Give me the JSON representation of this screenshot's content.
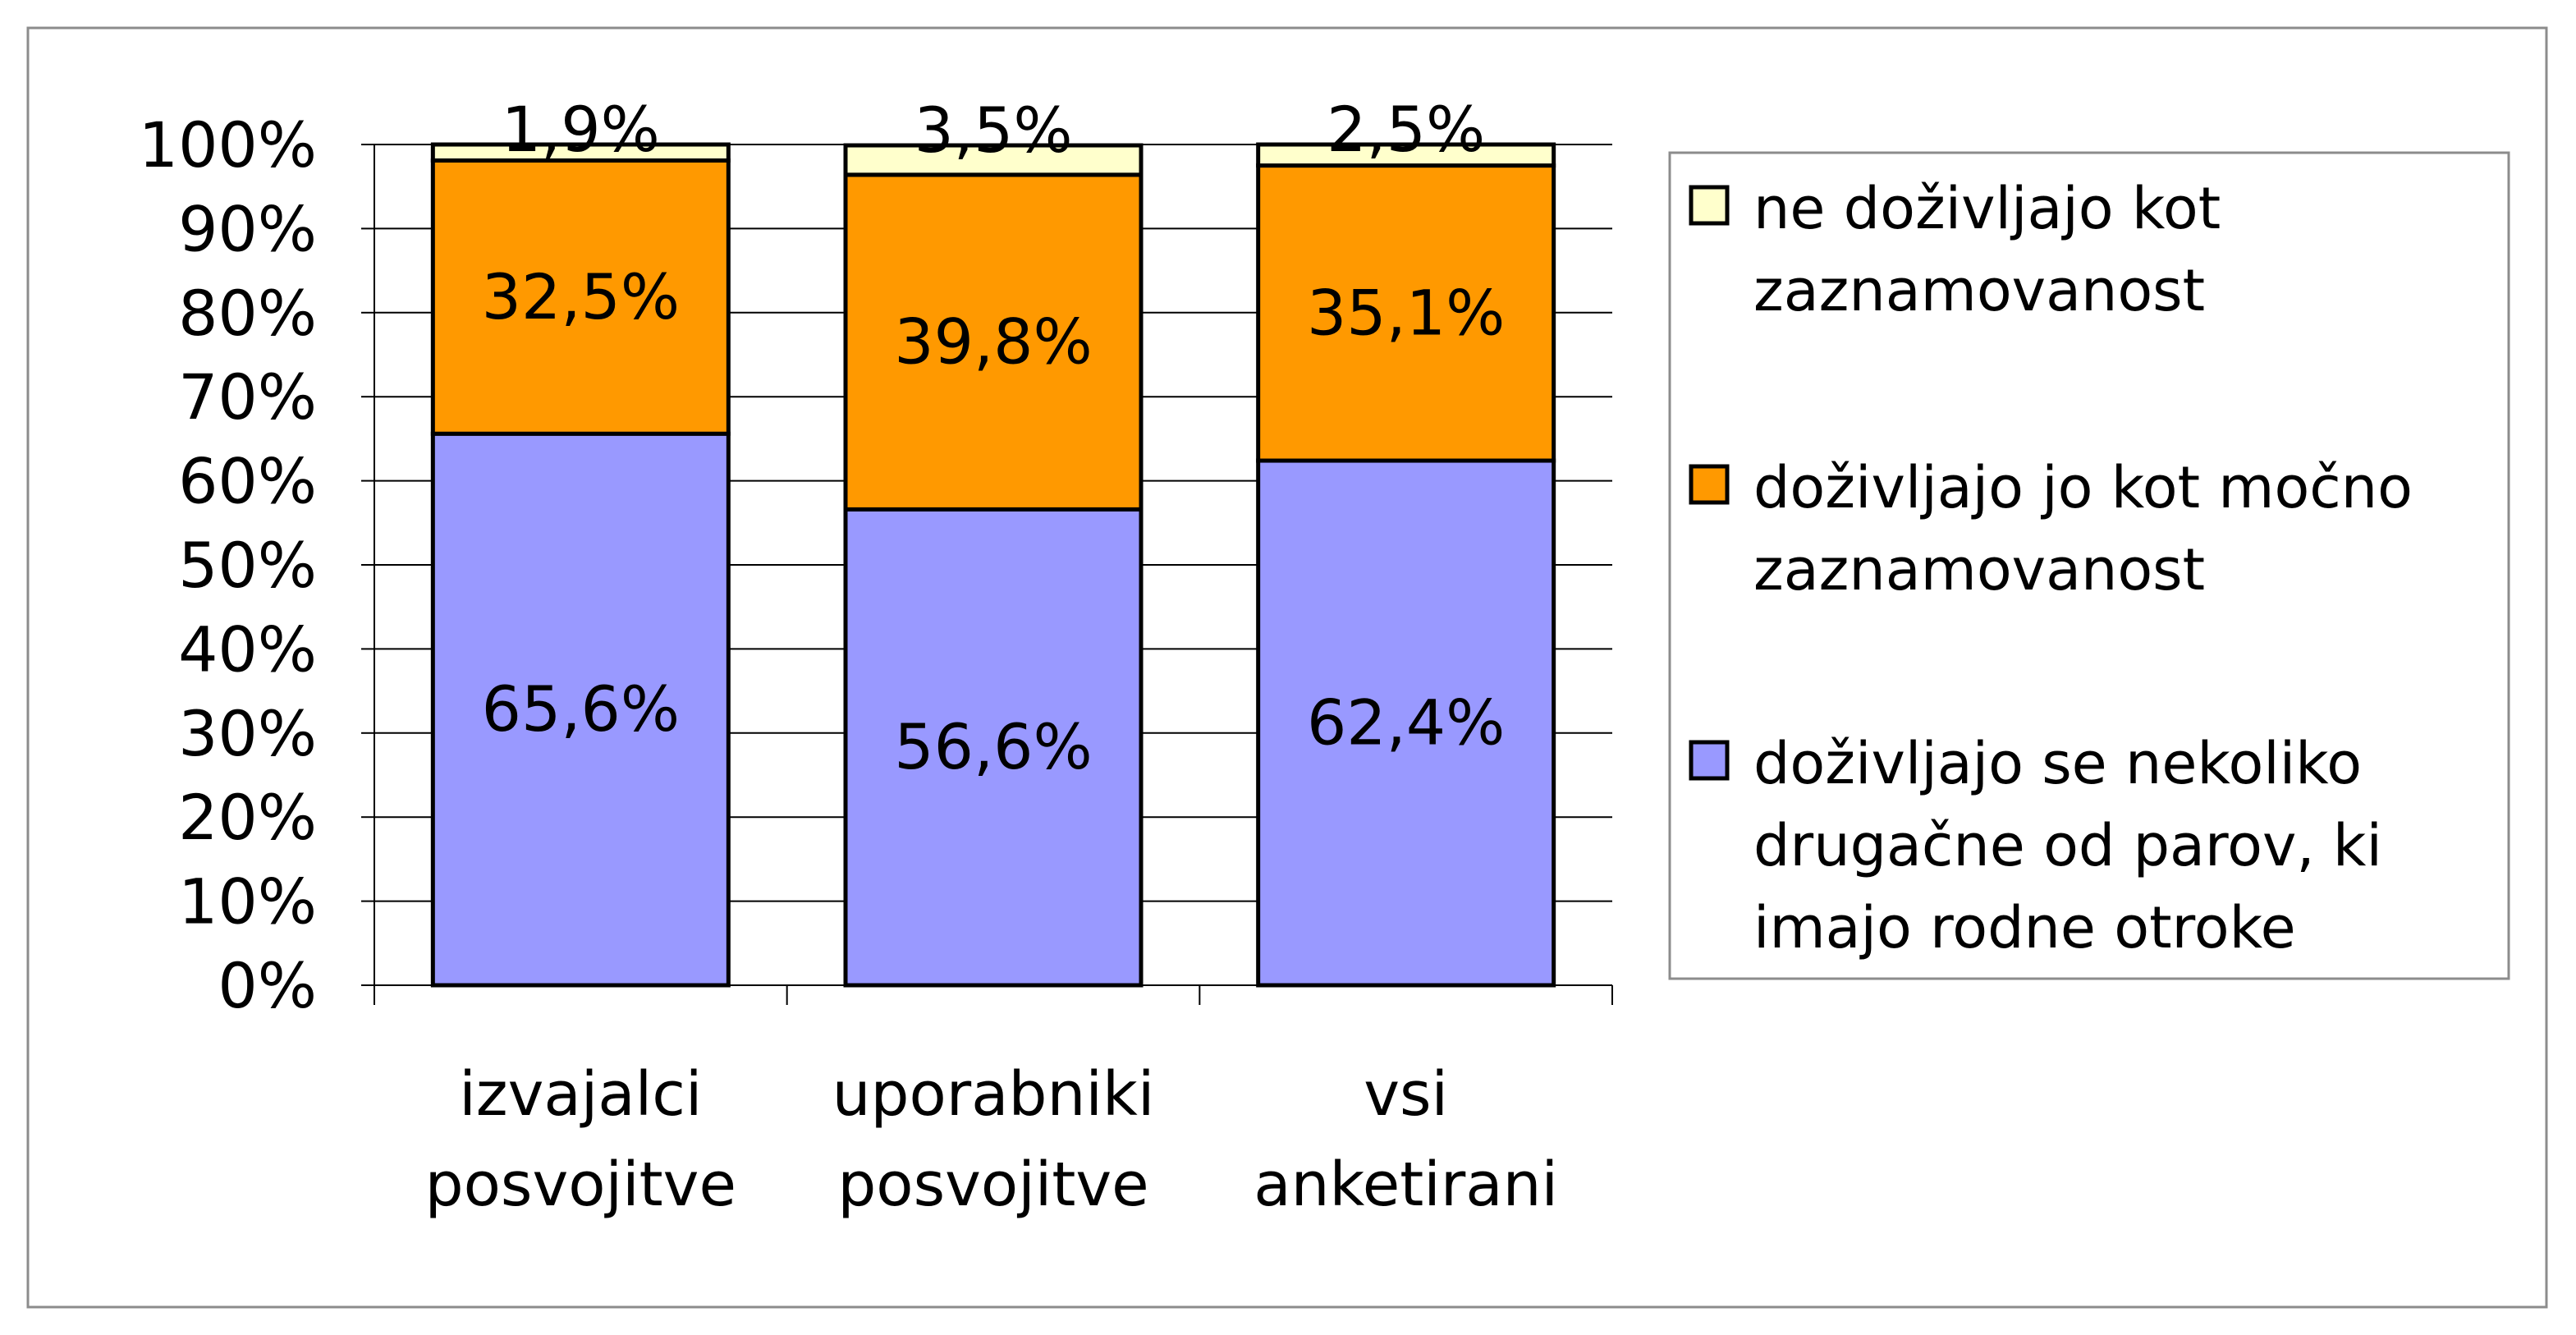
{
  "chart_data": {
    "type": "bar",
    "stacked": true,
    "percent_stacked": true,
    "categories": [
      [
        "izvajalci",
        "posvojitve"
      ],
      [
        "uporabniki",
        "posvojitve"
      ],
      [
        "vsi",
        "anketirani"
      ]
    ],
    "series": [
      {
        "name": [
          "doživljajo se nekoliko",
          "drugačne od parov, ki",
          "imajo rodne otroke"
        ],
        "color": "#9999ff",
        "values": [
          65.6,
          56.6,
          62.4
        ],
        "labels": [
          "65,6%",
          "56,6%",
          "62,4%"
        ]
      },
      {
        "name": [
          "doživljajo jo kot močno",
          "zaznamovanost"
        ],
        "color": "#ff9900",
        "values": [
          32.5,
          39.8,
          35.1
        ],
        "labels": [
          "32,5%",
          "39,8%",
          "35,1%"
        ]
      },
      {
        "name": [
          "ne doživljajo kot",
          "zaznamovanost"
        ],
        "color": "#ffffcc",
        "values": [
          1.9,
          3.5,
          2.5
        ],
        "labels": [
          "1,9%",
          "3,5%",
          "2,5%"
        ]
      }
    ],
    "y_ticks": [
      "0%",
      "10%",
      "20%",
      "30%",
      "40%",
      "50%",
      "60%",
      "70%",
      "80%",
      "90%",
      "100%"
    ],
    "ylim": [
      0,
      100
    ],
    "grid": "horizontal",
    "legend_position": "right",
    "legend_order": [
      2,
      1,
      0
    ]
  }
}
